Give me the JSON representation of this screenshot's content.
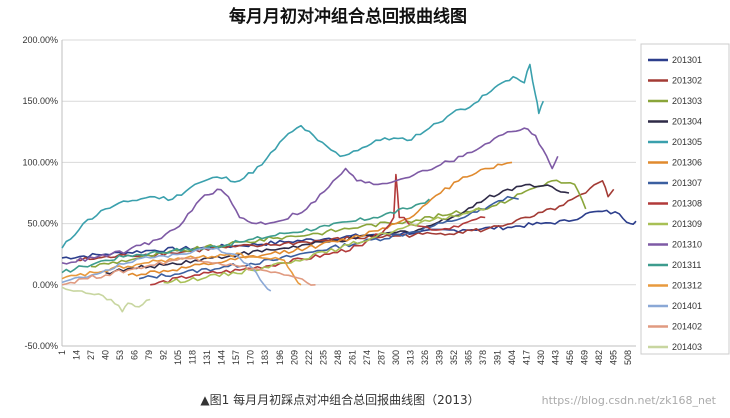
{
  "chart_data": {
    "type": "line",
    "title": "每月月初对冲组合总回报曲线图",
    "caption": "▲图1 每月月初踩点对冲组合总回报曲线图（2013）",
    "watermark": "https://blog.csdn.net/zk168_net",
    "ylim": [
      -0.5,
      2.0
    ],
    "y_ticks": [
      "-50.00%",
      "0.00%",
      "50.00%",
      "100.00%",
      "150.00%",
      "200.00%"
    ],
    "y_tick_values": [
      -0.5,
      0,
      0.5,
      1.0,
      1.5,
      2.0
    ],
    "x_ticks": [
      "1",
      "14",
      "27",
      "40",
      "53",
      "66",
      "79",
      "92",
      "105",
      "118",
      "131",
      "144",
      "157",
      "170",
      "183",
      "196",
      "209",
      "222",
      "235",
      "248",
      "261",
      "274",
      "287",
      "300",
      "313",
      "326",
      "339",
      "352",
      "365",
      "378",
      "391",
      "404",
      "417",
      "430",
      "443",
      "456",
      "469",
      "482",
      "495",
      "508"
    ],
    "grid": "horizontal",
    "legend_position": "right",
    "series": [
      {
        "name": "201301",
        "color": "#2c3e8c",
        "points": [
          [
            1,
            0.22
          ],
          [
            40,
            0.25
          ],
          [
            80,
            0.28
          ],
          [
            120,
            0.3
          ],
          [
            160,
            0.32
          ],
          [
            200,
            0.35
          ],
          [
            240,
            0.38
          ],
          [
            280,
            0.41
          ],
          [
            320,
            0.43
          ],
          [
            360,
            0.45
          ],
          [
            400,
            0.47
          ],
          [
            430,
            0.5
          ],
          [
            455,
            0.52
          ],
          [
            470,
            0.58
          ],
          [
            485,
            0.6
          ],
          [
            500,
            0.58
          ],
          [
            510,
            0.5
          ],
          [
            515,
            0.52
          ]
        ]
      },
      {
        "name": "201302",
        "color": "#a33b35",
        "points": [
          [
            14,
            0.2
          ],
          [
            60,
            0.24
          ],
          [
            100,
            0.26
          ],
          [
            140,
            0.3
          ],
          [
            180,
            0.32
          ],
          [
            220,
            0.35
          ],
          [
            260,
            0.38
          ],
          [
            300,
            0.4
          ],
          [
            340,
            0.42
          ],
          [
            380,
            0.45
          ],
          [
            420,
            0.55
          ],
          [
            450,
            0.65
          ],
          [
            470,
            0.75
          ],
          [
            485,
            0.85
          ],
          [
            490,
            0.72
          ],
          [
            495,
            0.78
          ]
        ]
      },
      {
        "name": "201303",
        "color": "#8aa53a",
        "points": [
          [
            27,
            0.15
          ],
          [
            70,
            0.22
          ],
          [
            110,
            0.28
          ],
          [
            150,
            0.33
          ],
          [
            190,
            0.38
          ],
          [
            230,
            0.42
          ],
          [
            270,
            0.48
          ],
          [
            310,
            0.52
          ],
          [
            350,
            0.58
          ],
          [
            390,
            0.65
          ],
          [
            420,
            0.78
          ],
          [
            440,
            0.85
          ],
          [
            460,
            0.82
          ],
          [
            470,
            0.62
          ]
        ]
      },
      {
        "name": "201304",
        "color": "#2e2a47",
        "points": [
          [
            40,
            0.1
          ],
          [
            80,
            0.15
          ],
          [
            120,
            0.2
          ],
          [
            160,
            0.25
          ],
          [
            200,
            0.3
          ],
          [
            240,
            0.35
          ],
          [
            280,
            0.4
          ],
          [
            320,
            0.45
          ],
          [
            350,
            0.55
          ],
          [
            380,
            0.7
          ],
          [
            400,
            0.78
          ],
          [
            420,
            0.82
          ],
          [
            440,
            0.8
          ],
          [
            455,
            0.75
          ]
        ]
      },
      {
        "name": "201305",
        "color": "#3aa0ad",
        "points": [
          [
            1,
            0.3
          ],
          [
            20,
            0.5
          ],
          [
            40,
            0.62
          ],
          [
            60,
            0.68
          ],
          [
            80,
            0.72
          ],
          [
            100,
            0.7
          ],
          [
            120,
            0.82
          ],
          [
            140,
            0.88
          ],
          [
            160,
            0.85
          ],
          [
            180,
            0.98
          ],
          [
            200,
            1.2
          ],
          [
            215,
            1.3
          ],
          [
            230,
            1.18
          ],
          [
            250,
            1.05
          ],
          [
            270,
            1.12
          ],
          [
            290,
            1.2
          ],
          [
            310,
            1.18
          ],
          [
            330,
            1.28
          ],
          [
            350,
            1.4
          ],
          [
            370,
            1.48
          ],
          [
            385,
            1.58
          ],
          [
            395,
            1.65
          ],
          [
            405,
            1.7
          ],
          [
            415,
            1.65
          ],
          [
            420,
            1.8
          ],
          [
            425,
            1.55
          ],
          [
            428,
            1.4
          ],
          [
            432,
            1.5
          ]
        ]
      },
      {
        "name": "201306",
        "color": "#e08a2e",
        "points": [
          [
            60,
            0.08
          ],
          [
            100,
            0.12
          ],
          [
            140,
            0.18
          ],
          [
            180,
            0.24
          ],
          [
            220,
            0.3
          ],
          [
            260,
            0.38
          ],
          [
            300,
            0.5
          ],
          [
            320,
            0.6
          ],
          [
            340,
            0.75
          ],
          [
            360,
            0.88
          ],
          [
            380,
            0.95
          ],
          [
            395,
            0.98
          ],
          [
            404,
            1.0
          ]
        ]
      },
      {
        "name": "201307",
        "color": "#3b5fa0",
        "points": [
          [
            70,
            0.05
          ],
          [
            110,
            0.1
          ],
          [
            150,
            0.15
          ],
          [
            190,
            0.2
          ],
          [
            230,
            0.28
          ],
          [
            270,
            0.35
          ],
          [
            310,
            0.42
          ],
          [
            350,
            0.52
          ],
          [
            380,
            0.62
          ],
          [
            400,
            0.72
          ],
          [
            410,
            0.7
          ]
        ]
      },
      {
        "name": "201308",
        "color": "#b23a3a",
        "points": [
          [
            80,
            0.0
          ],
          [
            120,
            0.08
          ],
          [
            160,
            0.12
          ],
          [
            200,
            0.18
          ],
          [
            240,
            0.25
          ],
          [
            270,
            0.32
          ],
          [
            290,
            0.45
          ],
          [
            298,
            0.55
          ],
          [
            300,
            0.9
          ],
          [
            303,
            0.55
          ],
          [
            320,
            0.48
          ],
          [
            340,
            0.45
          ],
          [
            360,
            0.5
          ],
          [
            380,
            0.55
          ]
        ]
      },
      {
        "name": "201309",
        "color": "#a8c055",
        "points": [
          [
            92,
            0.02
          ],
          [
            130,
            0.06
          ],
          [
            170,
            0.12
          ],
          [
            210,
            0.2
          ],
          [
            250,
            0.3
          ],
          [
            290,
            0.42
          ],
          [
            330,
            0.52
          ],
          [
            360,
            0.58
          ],
          [
            380,
            0.62
          ]
        ]
      },
      {
        "name": "201310",
        "color": "#7e5aa5",
        "points": [
          [
            1,
            0.18
          ],
          [
            30,
            0.22
          ],
          [
            60,
            0.28
          ],
          [
            90,
            0.38
          ],
          [
            110,
            0.52
          ],
          [
            125,
            0.7
          ],
          [
            140,
            0.78
          ],
          [
            150,
            0.72
          ],
          [
            160,
            0.55
          ],
          [
            175,
            0.5
          ],
          [
            195,
            0.52
          ],
          [
            220,
            0.62
          ],
          [
            240,
            0.8
          ],
          [
            255,
            0.95
          ],
          [
            265,
            0.85
          ],
          [
            280,
            0.82
          ],
          [
            300,
            0.85
          ],
          [
            320,
            0.92
          ],
          [
            340,
            0.98
          ],
          [
            360,
            1.05
          ],
          [
            380,
            1.15
          ],
          [
            400,
            1.25
          ],
          [
            415,
            1.28
          ],
          [
            425,
            1.22
          ],
          [
            435,
            1.05
          ],
          [
            440,
            0.95
          ],
          [
            445,
            1.05
          ]
        ]
      },
      {
        "name": "201311",
        "color": "#3d9c8e",
        "points": [
          [
            1,
            0.1
          ],
          [
            20,
            0.15
          ],
          [
            40,
            0.2
          ],
          [
            60,
            0.24
          ],
          [
            80,
            0.26
          ],
          [
            100,
            0.28
          ],
          [
            130,
            0.3
          ],
          [
            160,
            0.35
          ],
          [
            200,
            0.42
          ],
          [
            240,
            0.48
          ],
          [
            280,
            0.55
          ],
          [
            310,
            0.62
          ],
          [
            330,
            0.7
          ]
        ]
      },
      {
        "name": "201312",
        "color": "#e89a3e",
        "points": [
          [
            1,
            0.05
          ],
          [
            30,
            0.1
          ],
          [
            60,
            0.15
          ],
          [
            90,
            0.2
          ],
          [
            120,
            0.22
          ],
          [
            150,
            0.25
          ],
          [
            180,
            0.22
          ],
          [
            200,
            0.2
          ],
          [
            210,
            0.05
          ],
          [
            215,
            0.0
          ]
        ]
      },
      {
        "name": "201401",
        "color": "#8aa8d6",
        "points": [
          [
            1,
            0.02
          ],
          [
            20,
            0.06
          ],
          [
            40,
            0.12
          ],
          [
            60,
            0.18
          ],
          [
            80,
            0.22
          ],
          [
            100,
            0.25
          ],
          [
            120,
            0.28
          ],
          [
            140,
            0.3
          ],
          [
            160,
            0.22
          ],
          [
            175,
            0.1
          ],
          [
            182,
            0.0
          ],
          [
            188,
            -0.05
          ]
        ]
      },
      {
        "name": "201402",
        "color": "#e09a80",
        "points": [
          [
            1,
            0.0
          ],
          [
            20,
            0.05
          ],
          [
            40,
            0.08
          ],
          [
            60,
            0.12
          ],
          [
            80,
            0.16
          ],
          [
            100,
            0.2
          ],
          [
            120,
            0.22
          ],
          [
            140,
            0.18
          ],
          [
            160,
            0.15
          ],
          [
            180,
            0.12
          ],
          [
            200,
            0.08
          ],
          [
            220,
            0.02
          ],
          [
            228,
            0.0
          ]
        ]
      },
      {
        "name": "201403",
        "color": "#c8d6a0",
        "points": [
          [
            1,
            -0.02
          ],
          [
            15,
            -0.05
          ],
          [
            30,
            -0.08
          ],
          [
            45,
            -0.12
          ],
          [
            55,
            -0.22
          ],
          [
            60,
            -0.15
          ],
          [
            70,
            -0.18
          ],
          [
            80,
            -0.12
          ]
        ]
      }
    ]
  }
}
